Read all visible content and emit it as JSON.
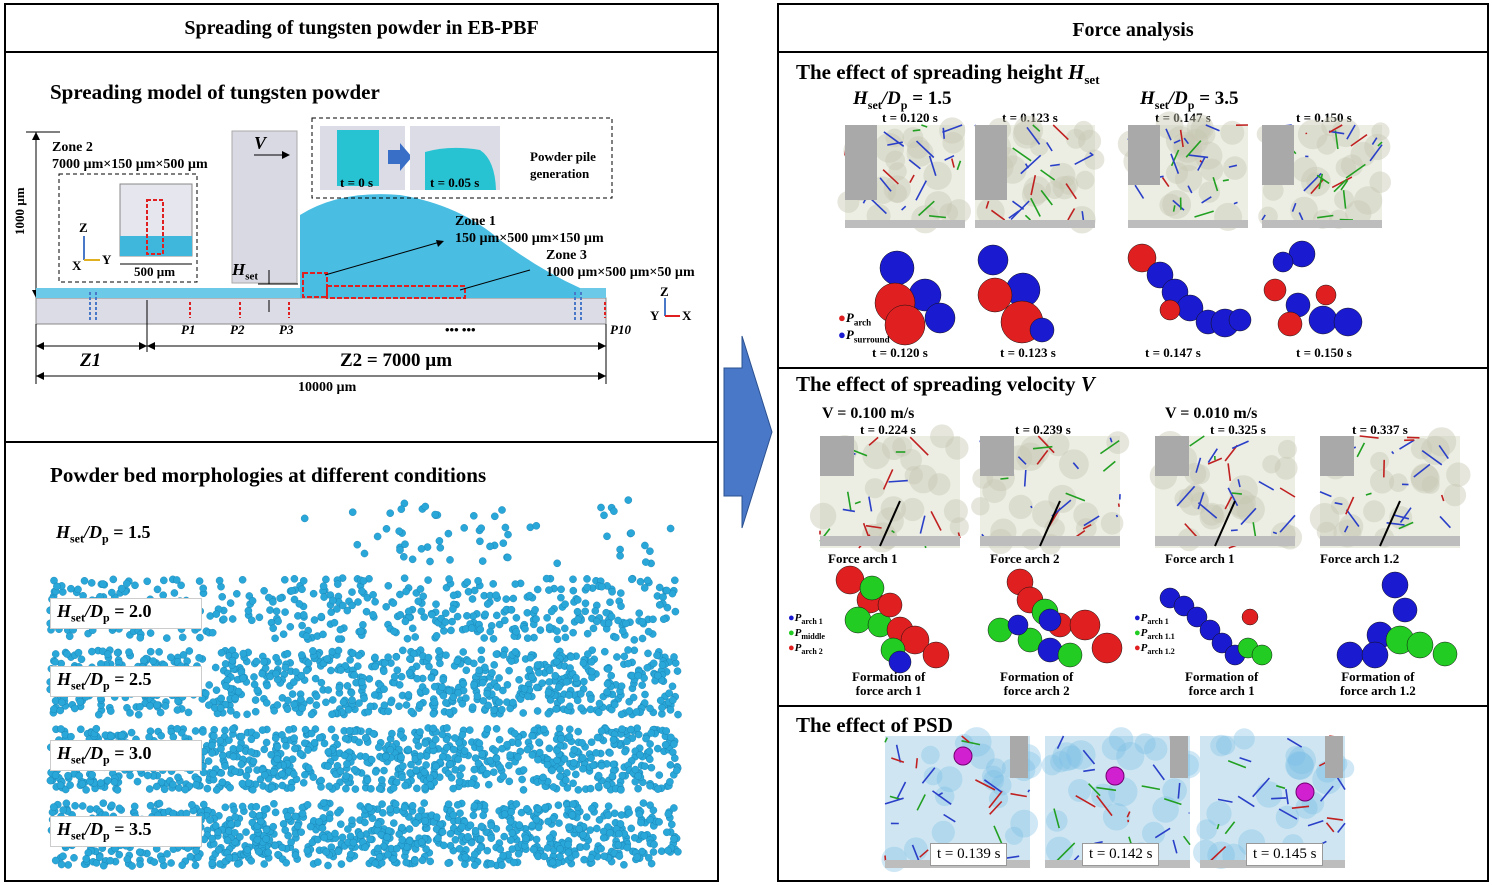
{
  "left_panel": {
    "title": "Spreading of tungsten powder in EB-PBF",
    "model": {
      "title": "Spreading model of tungsten powder",
      "dim_1000": "1000 µm",
      "zone2": "Zone 2",
      "zone2_dims": "7000 µm×150 µm×500 µm",
      "dim_500": "500 µm",
      "axis_z": "Z",
      "axis_x": "X",
      "axis_y": "Y",
      "velocity": "V",
      "hset": "H",
      "hset_sub": "set",
      "t0": "t = 0 s",
      "t005": "t = 0.05 s",
      "pile_gen": "Powder pile generation",
      "zone1": "Zone 1",
      "zone1_dims": "150 µm×500 µm×150 µm",
      "zone3": "Zone 3",
      "zone3_dims": "1000 µm×500 µm×50 µm",
      "probes": [
        "P1",
        "P2",
        "P3",
        "•••  •••",
        "P10"
      ],
      "z1": "Z1",
      "z2": "Z2 = 7000 µm",
      "total": "10000 µm",
      "axis2_z": "Z",
      "axis2_y": "Y",
      "axis2_x": "X"
    },
    "bed": {
      "title": "Powder bed morphologies at different conditions",
      "rows": [
        {
          "label": "H",
          "sub": "set",
          "mid": "/D",
          "sub2": "p",
          "value": " = 1.5",
          "density": 0.12
        },
        {
          "label": "H",
          "sub": "set",
          "mid": "/D",
          "sub2": "p",
          "value": " = 2.0",
          "density": 0.45
        },
        {
          "label": "H",
          "sub": "set",
          "mid": "/D",
          "sub2": "p",
          "value": " = 2.5",
          "density": 0.85
        },
        {
          "label": "H",
          "sub": "set",
          "mid": "/D",
          "sub2": "p",
          "value": " = 3.0",
          "density": 0.95
        },
        {
          "label": "H",
          "sub": "set",
          "mid": "/D",
          "sub2": "p",
          "value": " = 3.5",
          "density": 1.0
        }
      ]
    }
  },
  "right_panel": {
    "title": "Force analysis",
    "height": {
      "title": "The effect of spreading height ",
      "title_var": "H",
      "title_sub": "set",
      "cond1": "H",
      "cond1_sub": "set",
      "cond1_mid": "/D",
      "cond1_sub2": "p",
      "cond1_val": " = 1.5",
      "cond2_val": " = 3.5",
      "times": [
        "t = 0.120 s",
        "t = 0.123 s",
        "t = 0.147 s",
        "t = 0.150 s"
      ],
      "legend_arch": "P",
      "legend_arch_sub": "arch",
      "legend_surround": "P",
      "legend_surround_sub": "surround"
    },
    "velocity": {
      "title": "The effect of spreading velocity ",
      "title_var": "V",
      "cond1": "V = 0.100 m/s",
      "cond2": "V = 0.010 m/s",
      "times": [
        "t = 0.224 s",
        "t = 0.239 s",
        "t = 0.325 s",
        "t = 0.337 s"
      ],
      "arches": [
        "Force arch 1",
        "Force arch 2",
        "Force arch 1",
        "Force arch 1.2"
      ],
      "formation": [
        "Formation of",
        "force arch 1",
        "Formation of",
        "force arch 2",
        "Formation of",
        "force arch 1",
        "Formation of",
        "force arch 1.2"
      ],
      "legend1": [
        [
          "P",
          "arch 1"
        ],
        [
          "P",
          "middle"
        ],
        [
          "P",
          "arch 2"
        ]
      ],
      "legend2": [
        [
          "P",
          "arch 1"
        ],
        [
          "P",
          "arch 1.1"
        ],
        [
          "P",
          "arch 1.2"
        ]
      ]
    },
    "psd": {
      "title": "The effect of PSD",
      "times": [
        "t = 0.139 s",
        "t = 0.142 s",
        "t = 0.145 s"
      ]
    }
  },
  "colors": {
    "powder": "#2aa7d9",
    "arch": "#e02020",
    "surround": "#1a1ad0",
    "middle": "#22cc22",
    "arrow": "#4a78c8"
  }
}
